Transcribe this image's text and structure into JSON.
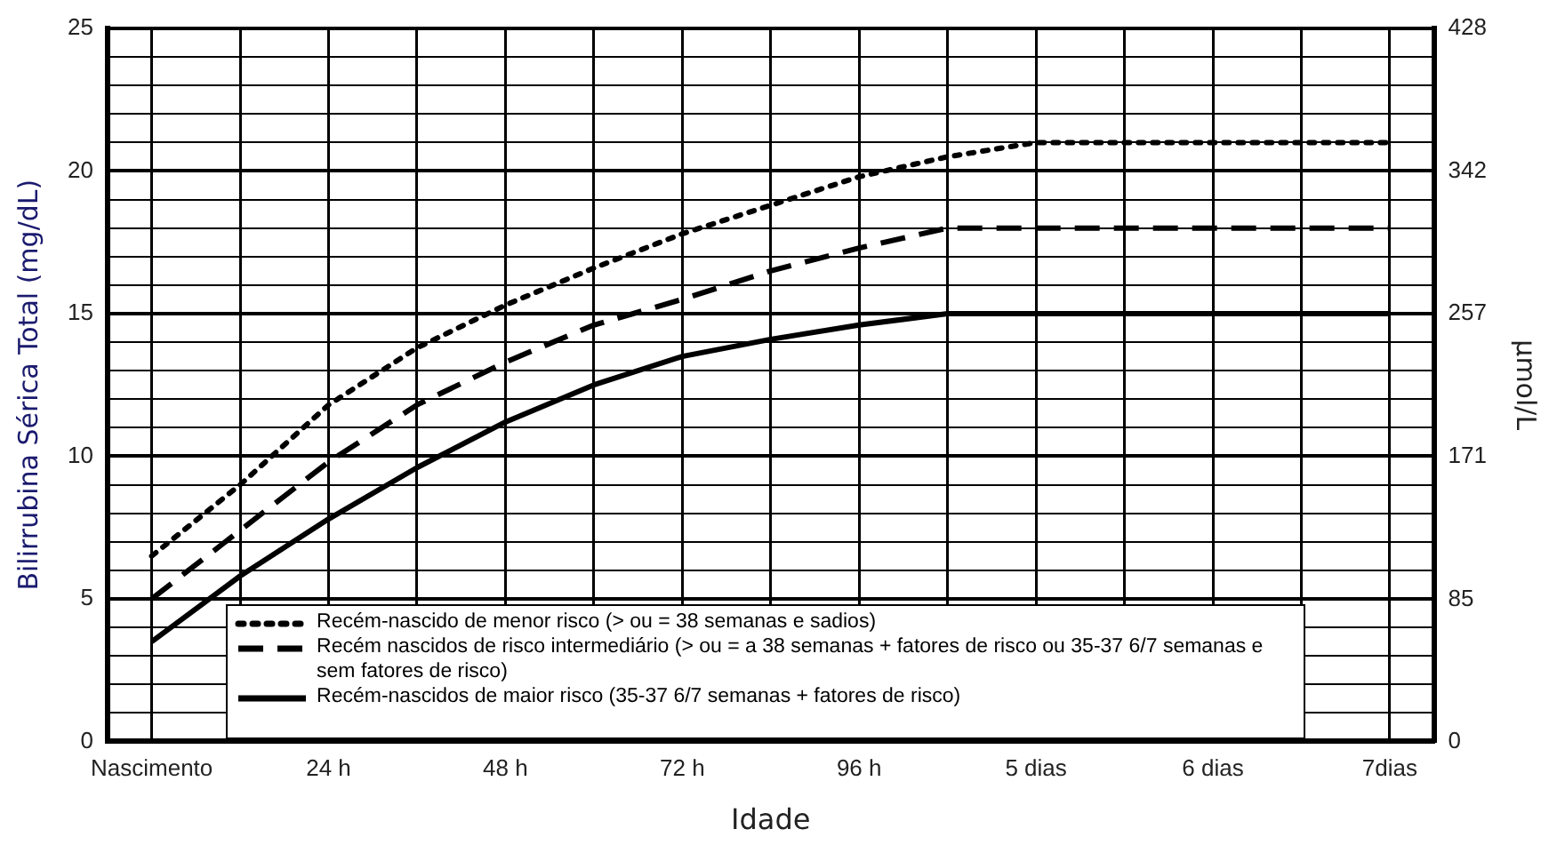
{
  "chart_data": {
    "type": "line",
    "xlabel": "Idade",
    "ylabel": "Bilirrubina Sérica Total (mg/dL)",
    "y2label": "μmol/L",
    "categories": [
      "Nascimento",
      null,
      "24 h",
      null,
      "48 h",
      null,
      "72 h",
      null,
      "96 h",
      null,
      "5 dias",
      null,
      "6 dias",
      null,
      "7dias"
    ],
    "series": [
      {
        "name": "Recém-nascido de menor risco (> ou = 38 semanas e sadios)",
        "color": "#000000",
        "line_style": "dotted",
        "values": [
          6.5,
          9,
          11.8,
          13.8,
          15.3,
          16.6,
          17.8,
          18.8,
          19.8,
          20.5,
          21,
          21,
          21,
          21,
          21
        ]
      },
      {
        "name": "Recém nascidos de risco intermediário (> ou = a 38 semanas + fatores de risco ou 35-37 6/7 semanas e sem fatores de risco)",
        "color": "#000000",
        "line_style": "dashed",
        "values": [
          5,
          7.4,
          9.8,
          11.8,
          13.3,
          14.6,
          15.5,
          16.5,
          17.3,
          18,
          18,
          18,
          18,
          18,
          18
        ]
      },
      {
        "name": "Recém-nascidos de maior risco (35-37 6/7 semanas + fatores de risco)",
        "color": "#000000",
        "line_style": "solid",
        "values": [
          3.5,
          5.8,
          7.8,
          9.6,
          11.2,
          12.5,
          13.5,
          14.1,
          14.6,
          15,
          15,
          15,
          15,
          15,
          15
        ]
      }
    ],
    "ylim": [
      0,
      25
    ],
    "yticks": [
      0,
      {
        "value": 1,
        "label": null
      },
      {
        "value": 2,
        "label": null
      },
      {
        "value": 3,
        "label": null
      },
      {
        "value": 4,
        "label": null
      },
      5,
      {
        "value": 6,
        "label": null
      },
      {
        "value": 7,
        "label": null
      },
      {
        "value": 8,
        "label": null
      },
      {
        "value": 9,
        "label": null
      },
      10,
      {
        "value": 11,
        "label": null
      },
      {
        "value": 12,
        "label": null
      },
      {
        "value": 13,
        "label": null
      },
      {
        "value": 14,
        "label": null
      },
      15,
      {
        "value": 16,
        "label": null
      },
      {
        "value": 17,
        "label": null
      },
      {
        "value": 18,
        "label": null
      },
      {
        "value": 19,
        "label": null
      },
      20,
      {
        "value": 21,
        "label": null
      },
      {
        "value": 22,
        "label": null
      },
      {
        "value": 23,
        "label": null
      },
      {
        "value": 24,
        "label": null
      },
      25
    ],
    "y2lim": [
      0,
      428
    ],
    "y2ticks": [
      0,
      85,
      171,
      257,
      342,
      428
    ],
    "grid": true,
    "legend": "bottom",
    "marker": "none"
  }
}
